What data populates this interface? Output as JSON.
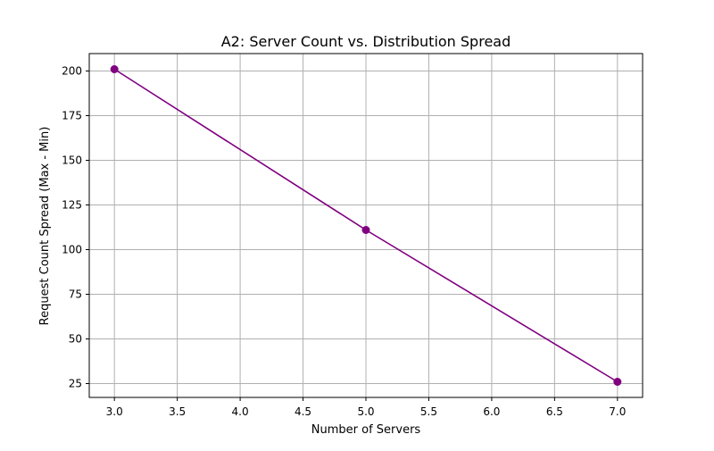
{
  "chart_data": {
    "type": "line",
    "title": "A2: Server Count vs. Distribution Spread",
    "xlabel": "Number of Servers",
    "ylabel": "Request Count Spread (Max - Min)",
    "x": [
      3,
      5,
      7
    ],
    "series": [
      {
        "values": [
          201,
          111,
          26
        ],
        "color": "#800080",
        "marker": "circle"
      }
    ],
    "xlim": [
      2.8,
      7.2
    ],
    "ylim": [
      17.25,
      209.75
    ],
    "xticks": [
      3.0,
      3.5,
      4.0,
      4.5,
      5.0,
      5.5,
      6.0,
      6.5,
      7.0
    ],
    "xtick_labels": [
      "3.0",
      "3.5",
      "4.0",
      "4.5",
      "5.0",
      "5.5",
      "6.0",
      "6.5",
      "7.0"
    ],
    "yticks": [
      25,
      50,
      75,
      100,
      125,
      150,
      175,
      200
    ],
    "ytick_labels": [
      "25",
      "50",
      "75",
      "100",
      "125",
      "150",
      "175",
      "200"
    ],
    "grid": true,
    "grid_color": "#b0b0b0",
    "legend": false
  }
}
